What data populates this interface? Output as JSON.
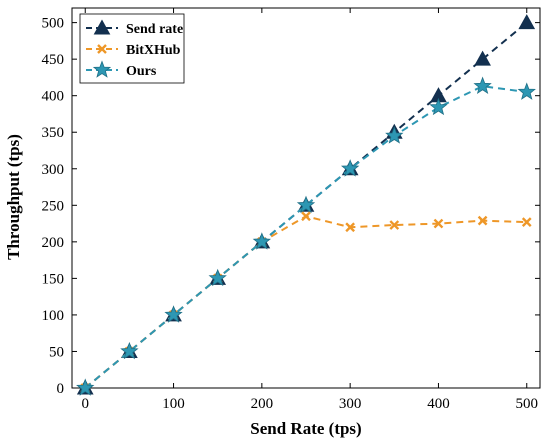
{
  "chart_data": {
    "type": "line",
    "title": "",
    "xlabel": "Send Rate (tps)",
    "ylabel": "Throughput (tps)",
    "xlim": [
      -15,
      515
    ],
    "ylim": [
      0,
      520
    ],
    "xticks": [
      0,
      100,
      200,
      300,
      400,
      500
    ],
    "yticks": [
      0,
      50,
      100,
      150,
      200,
      250,
      300,
      350,
      400,
      450,
      500
    ],
    "grid": false,
    "legend_position": "top-left",
    "x": [
      0,
      50,
      100,
      150,
      200,
      250,
      300,
      350,
      400,
      450,
      500
    ],
    "series": [
      {
        "name": "Send rate",
        "color": "#13304f",
        "marker": "triangle",
        "line_style": "dashed",
        "values": [
          0,
          50,
          100,
          150,
          200,
          250,
          300,
          350,
          400,
          450,
          500
        ]
      },
      {
        "name": "BitXHub",
        "color": "#ee9728",
        "marker": "x",
        "line_style": "dashed",
        "values": [
          0,
          50,
          100,
          150,
          200,
          235,
          220,
          223,
          225,
          229,
          227
        ]
      },
      {
        "name": "Ours",
        "color": "#2d97b3",
        "marker": "star",
        "line_style": "dashed",
        "values": [
          0,
          50,
          100,
          150,
          200,
          250,
          300,
          345,
          384,
          413,
          405
        ]
      }
    ]
  }
}
